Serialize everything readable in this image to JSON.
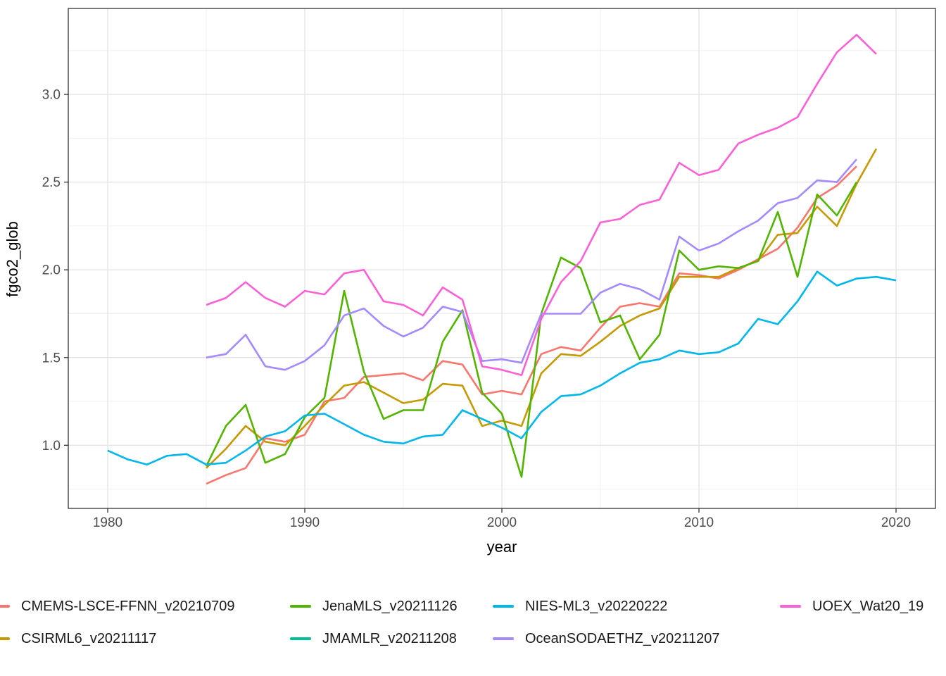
{
  "chart_data": {
    "type": "line",
    "title": "",
    "xlabel": "year",
    "ylabel": "fgco2_glob",
    "xlim": [
      1978,
      2022
    ],
    "ylim": [
      0.64,
      3.49
    ],
    "x_ticks": [
      1980,
      1990,
      2000,
      2010,
      2020
    ],
    "y_ticks": [
      1.0,
      1.5,
      2.0,
      2.5,
      3.0
    ],
    "x_tick_labels": [
      "1980",
      "1990",
      "2000",
      "2010",
      "2020"
    ],
    "y_tick_labels": [
      "1.0",
      "1.5",
      "2.0",
      "2.5",
      "3.0"
    ],
    "x_minor_ticks": [
      1985,
      1995,
      2005,
      2015
    ],
    "y_minor_ticks": [
      0.75,
      1.25,
      1.75,
      2.25,
      2.75,
      3.25
    ],
    "grid": true,
    "legend_position": "bottom",
    "series": [
      {
        "name": "CMEMS-LSCE-FFNN_v20210709",
        "color": "#F8766D",
        "start_year": 1985,
        "values": [
          0.78,
          0.83,
          0.87,
          1.04,
          1.02,
          1.06,
          1.25,
          1.27,
          1.39,
          1.4,
          1.41,
          1.37,
          1.48,
          1.46,
          1.29,
          1.31,
          1.29,
          1.52,
          1.56,
          1.54,
          1.67,
          1.79,
          1.81,
          1.79,
          1.98,
          1.97,
          1.95,
          2.0,
          2.06,
          2.12,
          2.24,
          2.41,
          2.48,
          2.59
        ]
      },
      {
        "name": "CSIRML6_v20211117",
        "color": "#C49A00",
        "start_year": 1985,
        "values": [
          0.87,
          0.98,
          1.11,
          1.02,
          1.0,
          1.11,
          1.23,
          1.34,
          1.36,
          1.3,
          1.24,
          1.26,
          1.35,
          1.34,
          1.11,
          1.14,
          1.11,
          1.41,
          1.52,
          1.51,
          1.59,
          1.68,
          1.74,
          1.78,
          1.96,
          1.96,
          1.96,
          2.01,
          2.05,
          2.2,
          2.21,
          2.36,
          2.25,
          2.49,
          2.69
        ]
      },
      {
        "name": "JenaMLS_v20211126",
        "color": "#53B400",
        "start_year": 1985,
        "values": [
          0.88,
          1.11,
          1.23,
          0.9,
          0.95,
          1.16,
          1.27,
          1.88,
          1.42,
          1.15,
          1.2,
          1.2,
          1.59,
          1.77,
          1.3,
          1.18,
          0.82,
          1.75,
          2.07,
          2.01,
          1.7,
          1.74,
          1.49,
          1.63,
          2.11,
          2.0,
          2.02,
          2.01,
          2.05,
          2.33,
          1.96,
          2.43,
          2.31,
          2.5
        ]
      },
      {
        "name": "JMAMLR_v20211208",
        "color": "#00C094",
        "start_year": null,
        "values": []
      },
      {
        "name": "NIES-ML3_v20220222",
        "color": "#00B6EB",
        "start_year": 1980,
        "values": [
          0.97,
          0.92,
          0.89,
          0.94,
          0.95,
          0.89,
          0.9,
          0.97,
          1.05,
          1.08,
          1.17,
          1.18,
          1.12,
          1.06,
          1.02,
          1.01,
          1.05,
          1.06,
          1.2,
          1.15,
          1.1,
          1.04,
          1.19,
          1.28,
          1.29,
          1.34,
          1.41,
          1.47,
          1.49,
          1.54,
          1.52,
          1.53,
          1.58,
          1.72,
          1.69,
          1.82,
          1.99,
          1.91,
          1.95,
          1.96,
          1.94
        ]
      },
      {
        "name": "OceanSODAETHZ_v20211207",
        "color": "#A58AFF",
        "start_year": 1985,
        "values": [
          1.5,
          1.52,
          1.63,
          1.45,
          1.43,
          1.48,
          1.57,
          1.74,
          1.78,
          1.68,
          1.62,
          1.67,
          1.79,
          1.76,
          1.48,
          1.49,
          1.47,
          1.75,
          1.75,
          1.75,
          1.87,
          1.92,
          1.89,
          1.83,
          2.19,
          2.11,
          2.15,
          2.22,
          2.28,
          2.38,
          2.41,
          2.51,
          2.5,
          2.63
        ]
      },
      {
        "name": "UOEX_Wat20_19",
        "color": "#FB61D7",
        "start_year": 1985,
        "values": [
          1.8,
          1.84,
          1.93,
          1.84,
          1.79,
          1.88,
          1.86,
          1.98,
          2.0,
          1.82,
          1.8,
          1.74,
          1.9,
          1.83,
          1.45,
          1.43,
          1.4,
          1.72,
          1.93,
          2.05,
          2.27,
          2.29,
          2.37,
          2.4,
          2.61,
          2.54,
          2.57,
          2.72,
          2.77,
          2.81,
          2.87,
          3.06,
          3.24,
          3.34,
          3.23
        ]
      }
    ]
  },
  "styles": {
    "panel_border": "#333333",
    "grid_major": "#e4e4e4",
    "grid_minor": "#f0f0f0",
    "tick_mark": "#333333",
    "tick_label": "#4d4d4d",
    "background": "#ffffff"
  }
}
